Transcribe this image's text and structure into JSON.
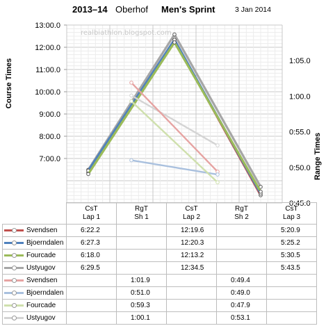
{
  "header": {
    "season": "2013–14",
    "venue": "Oberhof",
    "event": "Men's Sprint",
    "date": "3 Jan 2014"
  },
  "watermark": "realbiathlon.blogspot.com",
  "chart_data": {
    "type": "line",
    "categories": [
      "CsT Lap 1",
      "RgT Sh 1",
      "CsT Lap 2",
      "RgT Sh 2",
      "CsT Lap 3"
    ],
    "category_lines": [
      [
        "CsT",
        "Lap 1"
      ],
      [
        "RgT",
        "Sh 1"
      ],
      [
        "CsT",
        "Lap 2"
      ],
      [
        "RgT",
        "Sh 2"
      ],
      [
        "CsT",
        "Lap 3"
      ]
    ],
    "y_left": {
      "label": "Course Times",
      "ticks": [
        "7:00.0",
        "8:00.0",
        "9:00.0",
        "10:00.0",
        "11:00.0",
        "12:00.0",
        "13:00.0"
      ],
      "range_seconds": [
        300,
        780
      ]
    },
    "y_right": {
      "label": "Range Times",
      "ticks": [
        "0:45.0",
        "0:50.0",
        "0:55.0",
        "1:00.0",
        "1:05.0"
      ],
      "range_seconds": [
        45,
        70
      ]
    },
    "grid": true,
    "series": [
      {
        "name": "Svendsen",
        "axis": "left",
        "color": "#c0504d",
        "display": [
          "6:22.2",
          "",
          "12:19.6",
          "",
          "5:20.9"
        ],
        "values_seconds": [
          382.2,
          null,
          739.6,
          null,
          320.9
        ]
      },
      {
        "name": "Bjoerndalen",
        "axis": "left",
        "color": "#4f81bd",
        "display": [
          "6:27.3",
          "",
          "12:20.3",
          "",
          "5:25.2"
        ],
        "values_seconds": [
          387.3,
          null,
          740.3,
          null,
          325.2
        ]
      },
      {
        "name": "Fourcade",
        "axis": "left",
        "color": "#9bbb59",
        "display": [
          "6:18.0",
          "",
          "12:13.2",
          "",
          "5:30.5"
        ],
        "values_seconds": [
          378.0,
          null,
          733.2,
          null,
          330.5
        ]
      },
      {
        "name": "Ustyugov",
        "axis": "left",
        "color": "#a6a6a6",
        "display": [
          "6:29.5",
          "",
          "12:34.5",
          "",
          "5:43.5"
        ],
        "values_seconds": [
          389.5,
          null,
          754.5,
          null,
          343.5
        ]
      },
      {
        "name": "Svendsen",
        "axis": "right",
        "color": "#e6a3a2",
        "display": [
          "",
          "1:01.9",
          "",
          "0:49.4",
          ""
        ],
        "values_seconds": [
          null,
          61.9,
          null,
          49.4,
          null
        ]
      },
      {
        "name": "Bjoerndalen",
        "axis": "right",
        "color": "#a9c0de",
        "display": [
          "",
          "0:51.0",
          "",
          "0:49.0",
          ""
        ],
        "values_seconds": [
          null,
          51.0,
          null,
          49.0,
          null
        ]
      },
      {
        "name": "Fourcade",
        "axis": "right",
        "color": "#cfe0ad",
        "display": [
          "",
          "0:59.3",
          "",
          "0:47.9",
          ""
        ],
        "values_seconds": [
          null,
          59.3,
          null,
          47.9,
          null
        ]
      },
      {
        "name": "Ustyugov",
        "axis": "right",
        "color": "#d4d4d4",
        "display": [
          "",
          "1:00.1",
          "",
          "0:53.1",
          ""
        ],
        "values_seconds": [
          null,
          60.1,
          null,
          53.1,
          null
        ]
      }
    ]
  }
}
